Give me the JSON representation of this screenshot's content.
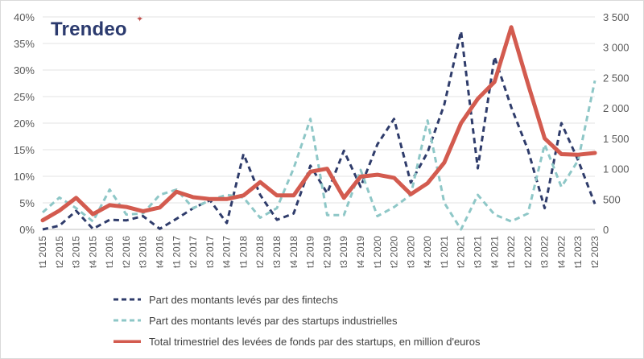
{
  "brand": {
    "name": "Trendeo",
    "mark": "✦"
  },
  "chart_data": {
    "type": "line",
    "categories": [
      "t1 2015",
      "t2 2015",
      "t3 2015",
      "t4 2015",
      "t1 2016",
      "t2 2016",
      "t3 2016",
      "t4 2016",
      "t1 2017",
      "t2 2017",
      "t3 2017",
      "t4 2017",
      "t1 2018",
      "t2 2018",
      "t3 2018",
      "t4 2018",
      "t1 2019",
      "t2 2019",
      "t3 2019",
      "t4 2019",
      "t1 2020",
      "t2 2020",
      "t3 2020",
      "t4 2020",
      "t1 2021",
      "t2 2021",
      "t3 2021",
      "t4 2021",
      "t1 2022",
      "t2 2022",
      "t3 2022",
      "t4 2022",
      "t1 2023",
      "t2 2023"
    ],
    "y_left": {
      "ticks": [
        "0%",
        "5%",
        "10%",
        "15%",
        "20%",
        "25%",
        "30%",
        "35%",
        "40%"
      ],
      "range": [
        0,
        40
      ]
    },
    "y_right": {
      "ticks": [
        "0",
        "500",
        "1 000",
        "1 500",
        "2 000",
        "2 500",
        "3 000",
        "3 500"
      ],
      "range": [
        0,
        3500
      ]
    },
    "grid": true,
    "legend_position": "bottom",
    "series": [
      {
        "name": "Part des montants levés par des fintechs",
        "axis": "left",
        "style": "dashed",
        "color": "#2f3c6b",
        "values": [
          0,
          0.7,
          3.5,
          0.1,
          1.8,
          1.7,
          2.5,
          0.1,
          2.0,
          4.0,
          5.5,
          1.2,
          14.2,
          6.5,
          1.8,
          3.0,
          12.0,
          6.8,
          14.8,
          8.0,
          16.0,
          20.8,
          8.8,
          14.5,
          23.5,
          37.3,
          11.5,
          32.5,
          23.0,
          15.0,
          4.0,
          20.0,
          13.0,
          4.8
        ]
      },
      {
        "name": "Part des montants levés par des startups industrielles",
        "axis": "left",
        "style": "dashed",
        "color": "#8ec7c7",
        "values": [
          3.2,
          6.0,
          4.0,
          1.5,
          7.5,
          2.8,
          3.0,
          6.5,
          7.5,
          4.0,
          5.5,
          6.5,
          6.0,
          2.2,
          4.0,
          11.5,
          20.8,
          2.7,
          2.7,
          11.2,
          2.5,
          4.2,
          6.5,
          20.5,
          5.0,
          0,
          6.5,
          2.8,
          1.5,
          3.0,
          16.0,
          8.0,
          13.0,
          28.0
        ]
      },
      {
        "name": "Total trimestriel des levées de fonds par des startups, en million d'euros",
        "axis": "right",
        "style": "solid",
        "color": "#d35b4f",
        "values": [
          150,
          310,
          520,
          250,
          400,
          370,
          300,
          360,
          620,
          530,
          500,
          500,
          560,
          780,
          560,
          560,
          950,
          1000,
          520,
          870,
          900,
          850,
          580,
          760,
          1100,
          1750,
          2150,
          2430,
          3330,
          2400,
          1500,
          1240,
          1230,
          1260
        ]
      }
    ]
  }
}
